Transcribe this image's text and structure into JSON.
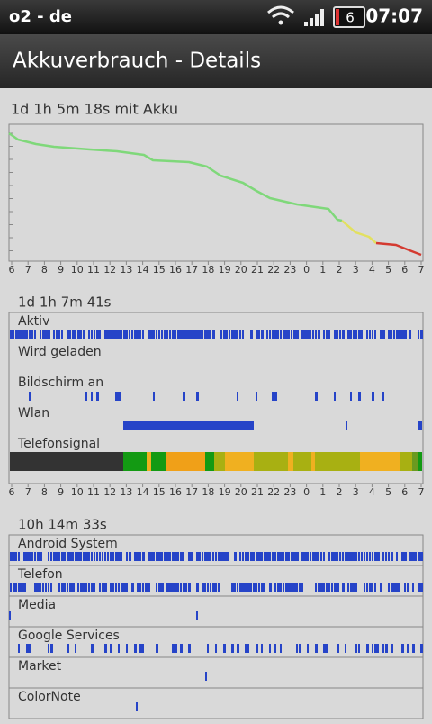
{
  "status_bar": {
    "carrier": "o2 - de",
    "battery_level": "6",
    "time": "07:07"
  },
  "title": "Akkuverbrauch - Details",
  "hours": [
    "6",
    "7",
    "8",
    "9",
    "10",
    "11",
    "12",
    "13",
    "14",
    "15",
    "16",
    "17",
    "18",
    "19",
    "20",
    "21",
    "22",
    "23",
    "0",
    "1",
    "2",
    "3",
    "4",
    "5",
    "6",
    "7"
  ],
  "battery_graph": {
    "duration": "1d 1h 5m 18s mit Akku"
  },
  "signal_section": {
    "duration": "1d 1h 7m 41s",
    "rows": [
      "Aktiv",
      "Wird geladen",
      "Bildschirm an",
      "Wlan",
      "Telefonsignal"
    ]
  },
  "apps_section": {
    "duration": "10h 14m 33s",
    "apps": [
      "Android System",
      "Telefon",
      "Media",
      "Google Services",
      "Market",
      "ColorNote"
    ]
  }
}
